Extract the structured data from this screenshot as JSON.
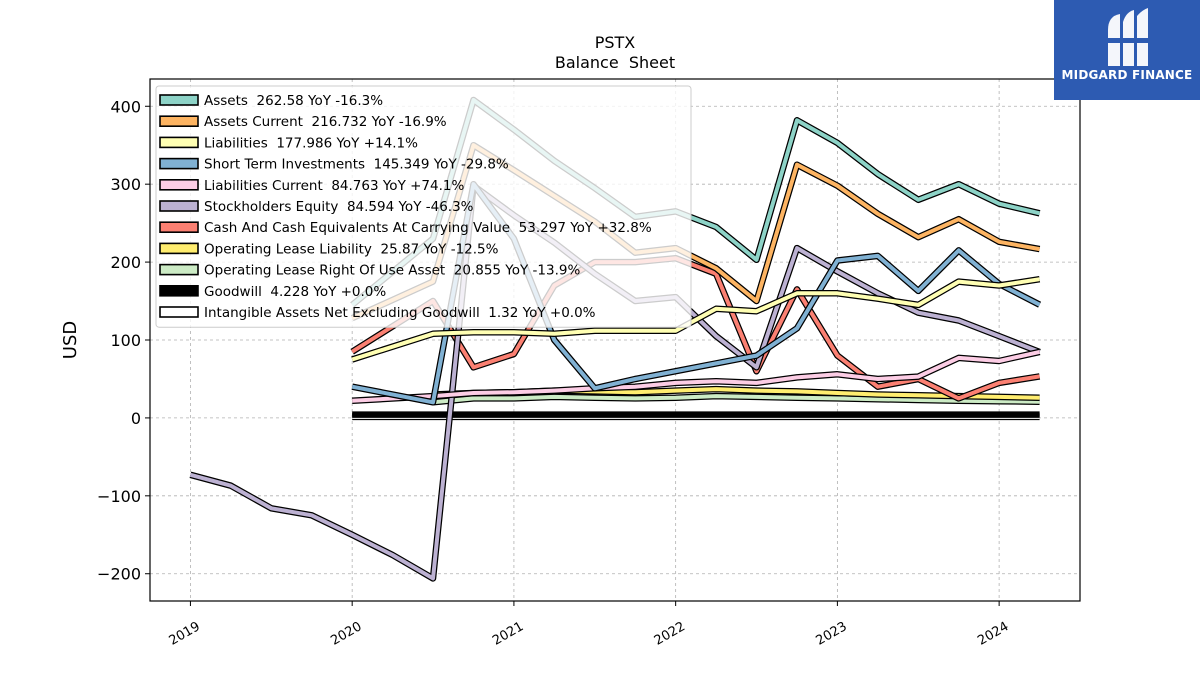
{
  "chart_data": {
    "type": "line",
    "title": "PSTX",
    "subtitle": "Balance  Sheet",
    "xlabel": "",
    "ylabel": "USD",
    "xlim": [
      2018.75,
      2024.5
    ],
    "ylim": [
      -235,
      435
    ],
    "x_ticks": [
      2019,
      2020,
      2021,
      2022,
      2023,
      2024
    ],
    "x_tick_labels": [
      "2019",
      "2020",
      "2021",
      "2022",
      "2023",
      "2024"
    ],
    "y_ticks": [
      -200,
      -100,
      0,
      100,
      200,
      300,
      400
    ],
    "y_tick_labels": [
      "−200",
      "−100",
      "0",
      "100",
      "200",
      "300",
      "400"
    ],
    "grid": true,
    "legend_position": "top-left",
    "series": [
      {
        "name": "Assets",
        "legend": "Assets  262.58 YoY -16.3%",
        "color": "#8dd3c7",
        "points": [
          [
            2020.0,
            145
          ],
          [
            2020.5,
            230
          ],
          [
            2020.75,
            408
          ],
          [
            2021.0,
            370
          ],
          [
            2021.25,
            330
          ],
          [
            2021.5,
            295
          ],
          [
            2021.75,
            258
          ],
          [
            2022.0,
            265
          ],
          [
            2022.25,
            245
          ],
          [
            2022.5,
            203
          ],
          [
            2022.75,
            382
          ],
          [
            2023.0,
            353
          ],
          [
            2023.25,
            313
          ],
          [
            2023.5,
            280
          ],
          [
            2023.75,
            300
          ],
          [
            2024.0,
            275
          ],
          [
            2024.25,
            262.58
          ]
        ]
      },
      {
        "name": "Assets Current",
        "legend": "Assets Current  216.732 YoY -16.9%",
        "color": "#fdb462",
        "points": [
          [
            2020.0,
            128
          ],
          [
            2020.5,
            175
          ],
          [
            2020.75,
            350
          ],
          [
            2021.0,
            318
          ],
          [
            2021.25,
            285
          ],
          [
            2021.5,
            252
          ],
          [
            2021.75,
            212
          ],
          [
            2022.0,
            218
          ],
          [
            2022.25,
            192
          ],
          [
            2022.5,
            150
          ],
          [
            2022.75,
            325
          ],
          [
            2023.0,
            298
          ],
          [
            2023.25,
            262
          ],
          [
            2023.5,
            232
          ],
          [
            2023.75,
            255
          ],
          [
            2024.0,
            226
          ],
          [
            2024.25,
            216.732
          ]
        ]
      },
      {
        "name": "Liabilities",
        "legend": "Liabilities  177.986 YoY +14.1%",
        "color": "#ffffb3",
        "points": [
          [
            2020.0,
            75
          ],
          [
            2020.5,
            108
          ],
          [
            2020.75,
            110
          ],
          [
            2021.0,
            110
          ],
          [
            2021.25,
            108
          ],
          [
            2021.5,
            112
          ],
          [
            2021.75,
            112
          ],
          [
            2022.0,
            112
          ],
          [
            2022.25,
            140
          ],
          [
            2022.5,
            137
          ],
          [
            2022.75,
            160
          ],
          [
            2023.0,
            160
          ],
          [
            2023.25,
            153
          ],
          [
            2023.5,
            145
          ],
          [
            2023.75,
            175
          ],
          [
            2024.0,
            170
          ],
          [
            2024.25,
            177.986
          ]
        ]
      },
      {
        "name": "Short Term Investments",
        "legend": "Short Term Investments  145.349 YoY -29.8%",
        "color": "#80b1d3",
        "points": [
          [
            2020.0,
            40
          ],
          [
            2020.5,
            20
          ],
          [
            2020.75,
            300
          ],
          [
            2021.0,
            230
          ],
          [
            2021.25,
            100
          ],
          [
            2021.5,
            38
          ],
          [
            2021.75,
            50
          ],
          [
            2022.0,
            60
          ],
          [
            2022.25,
            70
          ],
          [
            2022.5,
            80
          ],
          [
            2022.75,
            115
          ],
          [
            2023.0,
            202
          ],
          [
            2023.25,
            208
          ],
          [
            2023.5,
            163
          ],
          [
            2023.75,
            215
          ],
          [
            2024.0,
            172
          ],
          [
            2024.25,
            145.349
          ]
        ]
      },
      {
        "name": "Liabilities Current",
        "legend": "Liabilities Current  84.763 YoY +74.1%",
        "color": "#fccde5",
        "points": [
          [
            2020.0,
            22
          ],
          [
            2020.5,
            28
          ],
          [
            2020.75,
            32
          ],
          [
            2021.0,
            33
          ],
          [
            2021.25,
            35
          ],
          [
            2021.5,
            38
          ],
          [
            2021.75,
            40
          ],
          [
            2022.0,
            45
          ],
          [
            2022.25,
            47
          ],
          [
            2022.5,
            45
          ],
          [
            2022.75,
            52
          ],
          [
            2023.0,
            56
          ],
          [
            2023.25,
            50
          ],
          [
            2023.5,
            53
          ],
          [
            2023.75,
            77
          ],
          [
            2024.0,
            73
          ],
          [
            2024.25,
            84.763
          ]
        ]
      },
      {
        "name": "Stockholders Equity",
        "legend": "Stockholders Equity  84.594 YoY -46.3%",
        "color": "#bcb1d2",
        "points": [
          [
            2019.0,
            -73
          ],
          [
            2019.25,
            -87
          ],
          [
            2019.5,
            -116
          ],
          [
            2019.75,
            -125
          ],
          [
            2020.0,
            -150
          ],
          [
            2020.25,
            -176
          ],
          [
            2020.5,
            -206
          ],
          [
            2020.75,
            298
          ],
          [
            2021.0,
            260
          ],
          [
            2021.25,
            225
          ],
          [
            2021.5,
            185
          ],
          [
            2021.75,
            150
          ],
          [
            2022.0,
            155
          ],
          [
            2022.25,
            105
          ],
          [
            2022.5,
            65
          ],
          [
            2022.75,
            218
          ],
          [
            2023.0,
            188
          ],
          [
            2023.25,
            160
          ],
          [
            2023.5,
            135
          ],
          [
            2023.75,
            125
          ],
          [
            2024.0,
            105
          ],
          [
            2024.25,
            84.594
          ]
        ]
      },
      {
        "name": "Cash And Cash Equivalents At Carrying Value",
        "legend": "Cash And Cash Equivalents At Carrying Value  53.297 YoY +32.8%",
        "color": "#fb8072",
        "points": [
          [
            2020.0,
            85
          ],
          [
            2020.5,
            150
          ],
          [
            2020.75,
            65
          ],
          [
            2021.0,
            82
          ],
          [
            2021.25,
            170
          ],
          [
            2021.5,
            200
          ],
          [
            2021.75,
            200
          ],
          [
            2022.0,
            205
          ],
          [
            2022.25,
            185
          ],
          [
            2022.5,
            60
          ],
          [
            2022.75,
            165
          ],
          [
            2023.0,
            80
          ],
          [
            2023.25,
            40
          ],
          [
            2023.5,
            50
          ],
          [
            2023.75,
            25
          ],
          [
            2024.0,
            45
          ],
          [
            2024.25,
            53.297
          ]
        ]
      },
      {
        "name": "Operating Lease Liability",
        "legend": "Operating Lease Liability  25.87 YoY -12.5%",
        "color": "#ffed6f",
        "points": [
          [
            2020.5,
            30
          ],
          [
            2020.75,
            32
          ],
          [
            2021.0,
            33
          ],
          [
            2021.25,
            35
          ],
          [
            2021.5,
            34
          ],
          [
            2021.75,
            33
          ],
          [
            2022.0,
            35
          ],
          [
            2022.25,
            37
          ],
          [
            2022.5,
            35
          ],
          [
            2022.75,
            34
          ],
          [
            2023.0,
            32
          ],
          [
            2023.25,
            30
          ],
          [
            2023.5,
            29
          ],
          [
            2023.75,
            28
          ],
          [
            2024.0,
            27
          ],
          [
            2024.25,
            25.87
          ]
        ]
      },
      {
        "name": "Operating Lease Right Of Use Asset",
        "legend": "Operating Lease Right Of Use Asset  20.855 YoY -13.9%",
        "color": "#ccebc5",
        "points": [
          [
            2020.5,
            20
          ],
          [
            2020.75,
            25
          ],
          [
            2021.0,
            25
          ],
          [
            2021.25,
            27
          ],
          [
            2021.5,
            26
          ],
          [
            2021.75,
            25
          ],
          [
            2022.0,
            26
          ],
          [
            2022.25,
            28
          ],
          [
            2022.5,
            27
          ],
          [
            2022.75,
            26
          ],
          [
            2023.0,
            25
          ],
          [
            2023.25,
            24
          ],
          [
            2023.5,
            23
          ],
          [
            2023.75,
            22
          ],
          [
            2024.0,
            21.5
          ],
          [
            2024.25,
            20.855
          ]
        ]
      },
      {
        "name": "Goodwill",
        "legend": "Goodwill  4.228 YoY +0.0%",
        "color": "#000000",
        "points": [
          [
            2020.0,
            4.228
          ],
          [
            2020.5,
            4.228
          ],
          [
            2021.0,
            4.228
          ],
          [
            2021.5,
            4.228
          ],
          [
            2022.0,
            4.228
          ],
          [
            2022.5,
            4.228
          ],
          [
            2023.0,
            4.228
          ],
          [
            2023.5,
            4.228
          ],
          [
            2024.0,
            4.228
          ],
          [
            2024.25,
            4.228
          ]
        ]
      },
      {
        "name": "Intangible Assets Net Excluding Goodwill",
        "legend": "Intangible Assets Net Excluding Goodwill  1.32 YoY +0.0%",
        "color": "#ffffff",
        "points": [
          [
            2020.0,
            1.32
          ],
          [
            2020.5,
            1.32
          ],
          [
            2021.0,
            1.32
          ],
          [
            2021.5,
            1.32
          ],
          [
            2022.0,
            1.32
          ],
          [
            2022.5,
            1.32
          ],
          [
            2023.0,
            1.32
          ],
          [
            2023.5,
            1.32
          ],
          [
            2024.0,
            1.32
          ],
          [
            2024.25,
            1.32
          ]
        ]
      }
    ]
  },
  "logo": {
    "text": "MIDGARD FINANCE",
    "background": "#2d5bb2"
  }
}
